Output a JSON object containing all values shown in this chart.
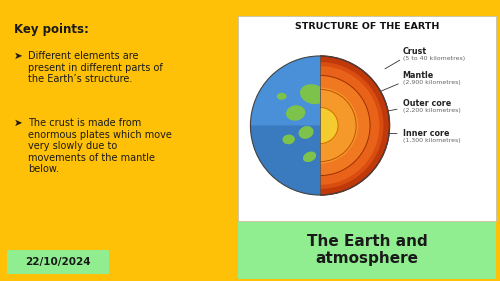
{
  "bg_color": "#FFC107",
  "key_points_text": "Key points:",
  "bullet1": "Different elements are\npresent in different parts of\nthe Earth’s structure.",
  "bullet2": "The crust is made from\nenormous plates which move\nvery slowly due to\nmovements of the mantle\nbelow.",
  "date_text": "22/10/2024",
  "date_bg": "#90EE90",
  "bottom_label": "The Earth and\natmosphere",
  "bottom_label_bg": "#90EE90",
  "diagram_title": "STRUCTURE OF THE EARTH",
  "diagram_bg": "#FFFFFF",
  "diagram_labels": [
    "Crust",
    "Mantle",
    "Outer core",
    "Inner core"
  ],
  "diagram_sublabels": [
    "(5 to 40 kilometres)",
    "(2,900 kilometres)",
    "(2,200 kilometres)",
    "(1,300 kilometres)"
  ],
  "earth_blue": "#4A90D9",
  "earth_blue2": "#3A7ABF",
  "earth_green": "#7DC24B",
  "crust_color": "#4A90D9",
  "mantle_outer": "#C0390A",
  "mantle_mid": "#D94E10",
  "mantle_light": "#E8621A",
  "outer_core_color": "#F07820",
  "outer_core_light": "#F5992A",
  "inner_core_color": "#F5CC30",
  "text_color": "#1a1a1a",
  "label_color": "#222222",
  "sub_label_color": "#666666"
}
